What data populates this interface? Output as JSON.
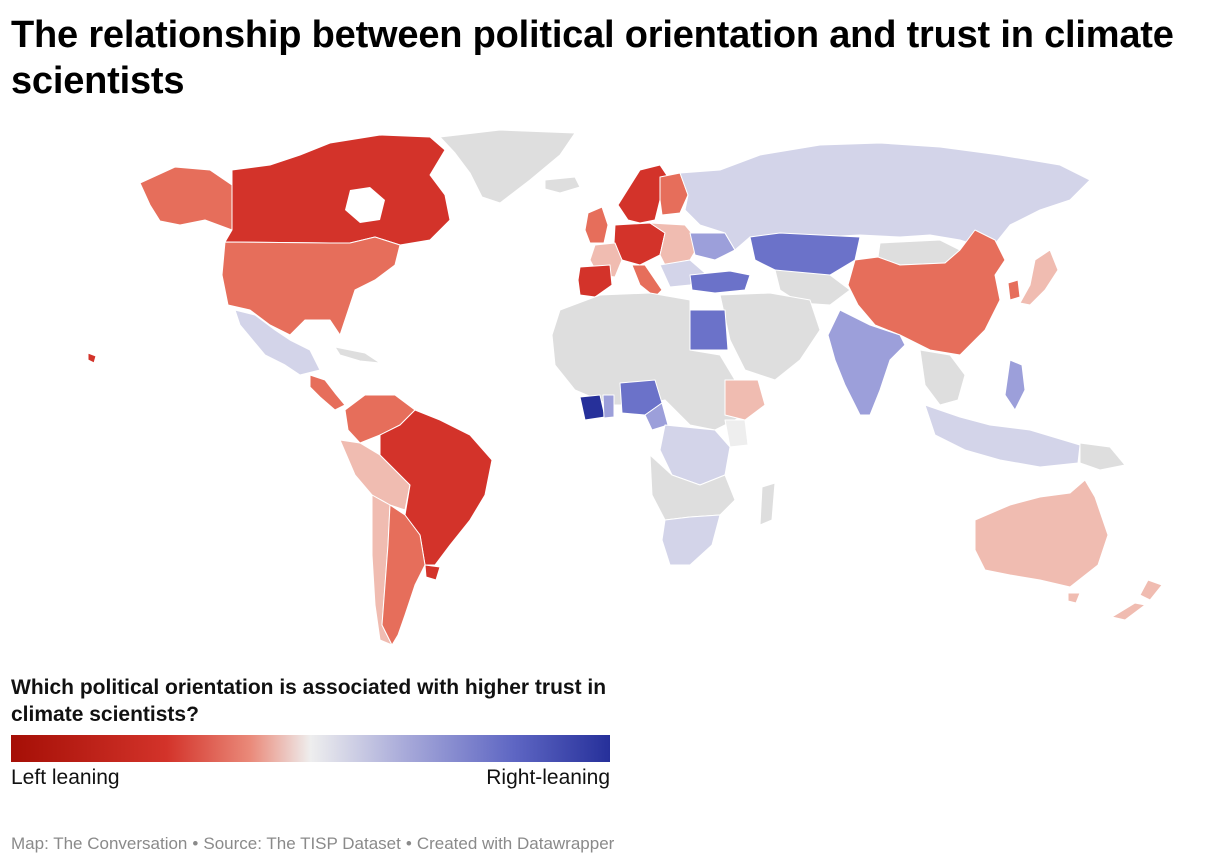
{
  "title": "The relationship between political orientation and trust in climate scientists",
  "legend": {
    "title": "Which political orientation is associated with higher trust in climate scientists?",
    "left_label": "Left leaning",
    "right_label": "Right-leaning"
  },
  "footer": {
    "map_credit": "Map: The Conversation",
    "source": "Source: The TISP Dataset",
    "created_with": "Created with Datawrapper"
  },
  "colors": {
    "no_data": "#dedede",
    "left_strong": "#a50f06",
    "left": "#d3332a",
    "left_mid": "#e66e5b",
    "left_light": "#f0bcb1",
    "neutral": "#eeeeee",
    "right_light": "#d3d4e9",
    "right_mid": "#9c9fda",
    "right": "#6b72c9",
    "right_strong": "#26309a"
  },
  "regions": [
    {
      "name": "Canada",
      "lean": "left"
    },
    {
      "name": "United States",
      "lean": "left_mid"
    },
    {
      "name": "Mexico",
      "lean": "right_light"
    },
    {
      "name": "Brazil",
      "lean": "left"
    },
    {
      "name": "Argentina",
      "lean": "left_mid"
    },
    {
      "name": "Chile",
      "lean": "left_light"
    },
    {
      "name": "Colombia",
      "lean": "left_mid"
    },
    {
      "name": "Peru",
      "lean": "left_light"
    },
    {
      "name": "Norway",
      "lean": "left"
    },
    {
      "name": "Sweden",
      "lean": "left"
    },
    {
      "name": "Finland",
      "lean": "left_mid"
    },
    {
      "name": "United Kingdom",
      "lean": "left_mid"
    },
    {
      "name": "Spain",
      "lean": "left"
    },
    {
      "name": "Germany",
      "lean": "left"
    },
    {
      "name": "Russia",
      "lean": "right_light"
    },
    {
      "name": "Kazakhstan",
      "lean": "right"
    },
    {
      "name": "Turkey",
      "lean": "right"
    },
    {
      "name": "Egypt",
      "lean": "right"
    },
    {
      "name": "Nigeria",
      "lean": "right"
    },
    {
      "name": "China",
      "lean": "left_mid"
    },
    {
      "name": "India",
      "lean": "right_mid"
    },
    {
      "name": "Japan",
      "lean": "left_light"
    },
    {
      "name": "Australia",
      "lean": "left_light"
    },
    {
      "name": "New Zealand",
      "lean": "left_light"
    },
    {
      "name": "South Africa",
      "lean": "right_light"
    },
    {
      "name": "Ethiopia",
      "lean": "left_light"
    },
    {
      "name": "Indonesia",
      "lean": "right_light"
    }
  ]
}
